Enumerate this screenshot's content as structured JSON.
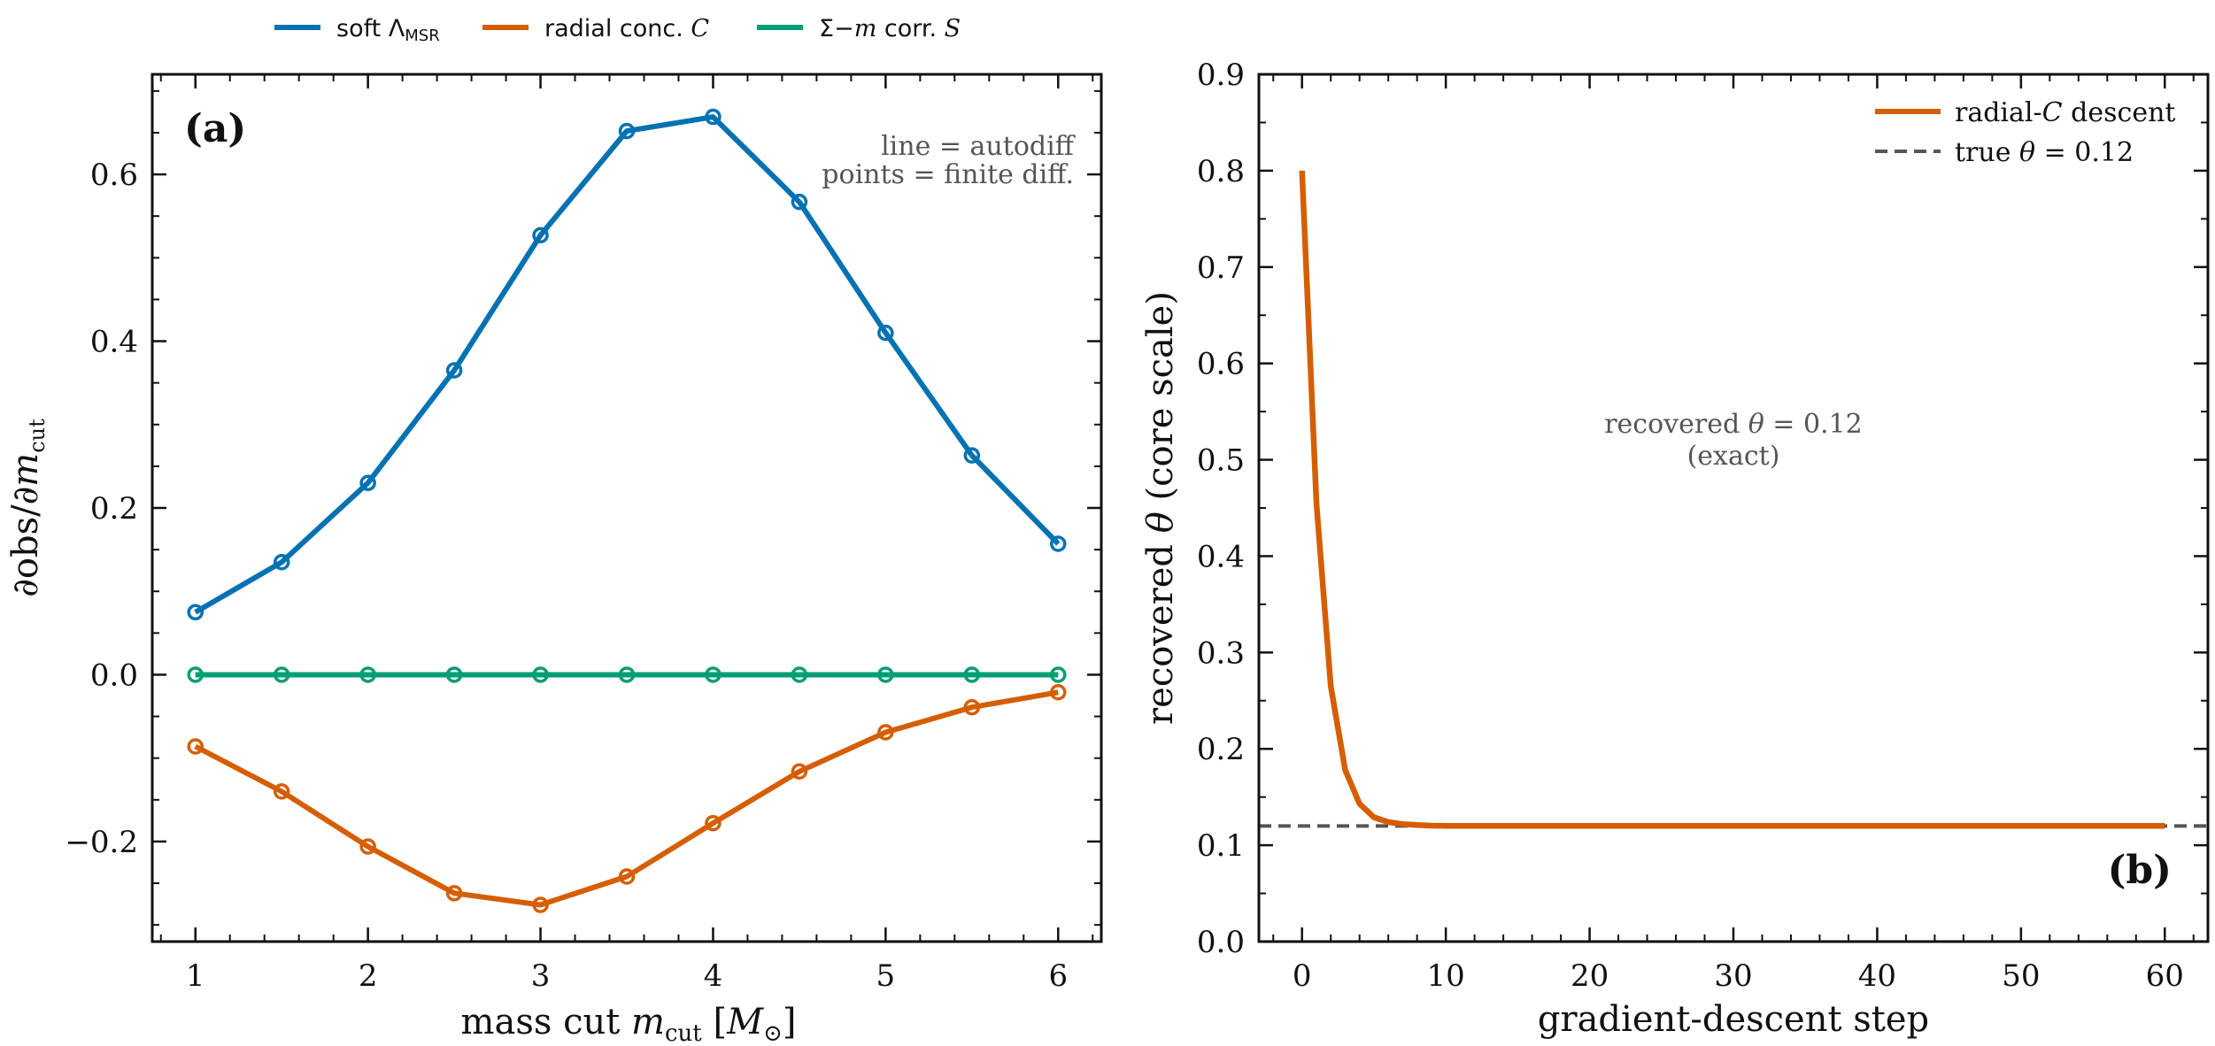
{
  "chart_data": [
    {
      "type": "line",
      "panel_label": "(a)",
      "xlabel": "mass cut m_cut [M_⊙]",
      "ylabel": "∂obs/∂m_cut",
      "xlim": [
        0.75,
        6.25
      ],
      "ylim": [
        -0.32,
        0.72
      ],
      "xticks": [
        1,
        2,
        3,
        4,
        5,
        6
      ],
      "yticks": [
        -0.2,
        0.0,
        0.2,
        0.4,
        0.6
      ],
      "ytick_labels": [
        "−0.2",
        "0.0",
        "0.2",
        "0.4",
        "0.6"
      ],
      "legend_position": "top, outside plot",
      "annotations": [
        "line = autodiff",
        "points = finite diff."
      ],
      "x": [
        1,
        1.5,
        2,
        2.5,
        3,
        3.5,
        4,
        4.5,
        5,
        5.5,
        6
      ],
      "series": [
        {
          "name": "soft Λ_MSR",
          "color": "#0072B2",
          "values": [
            0.075,
            0.135,
            0.23,
            0.365,
            0.527,
            0.652,
            0.669,
            0.567,
            0.41,
            0.263,
            0.157
          ]
        },
        {
          "name": "radial conc. C",
          "color": "#D55E00",
          "values": [
            -0.086,
            -0.14,
            -0.206,
            -0.262,
            -0.276,
            -0.242,
            -0.178,
            -0.116,
            -0.069,
            -0.039,
            -0.021
          ]
        },
        {
          "name": "Σ−m corr. S",
          "color": "#009E73",
          "values": [
            0,
            0,
            0,
            0,
            0,
            0,
            0,
            0,
            0,
            0,
            0
          ]
        }
      ]
    },
    {
      "type": "line",
      "panel_label": "(b)",
      "xlabel": "gradient-descent step",
      "ylabel": "recovered θ (core scale)",
      "xlim": [
        -3,
        63
      ],
      "ylim": [
        0,
        0.9
      ],
      "xticks": [
        0,
        10,
        20,
        30,
        40,
        50,
        60
      ],
      "yticks": [
        0.0,
        0.1,
        0.2,
        0.3,
        0.4,
        0.5,
        0.6,
        0.7,
        0.8,
        0.9
      ],
      "legend_position": "top-right",
      "annotations": [
        "recovered θ = 0.12",
        "(exact)"
      ],
      "reference_line": {
        "name": "true θ = 0.12",
        "y": 0.12,
        "color": "#555555",
        "style": "dashed"
      },
      "series": [
        {
          "name": "radial-C descent",
          "color": "#D55E00",
          "x": [
            0,
            1,
            2,
            3,
            4,
            5,
            6,
            7,
            8,
            9,
            10,
            15,
            20,
            30,
            40,
            50,
            60
          ],
          "values": [
            0.8,
            0.455,
            0.265,
            0.178,
            0.143,
            0.129,
            0.124,
            0.122,
            0.121,
            0.1203,
            0.12,
            0.12,
            0.12,
            0.12,
            0.12,
            0.12,
            0.12
          ]
        }
      ]
    }
  ]
}
